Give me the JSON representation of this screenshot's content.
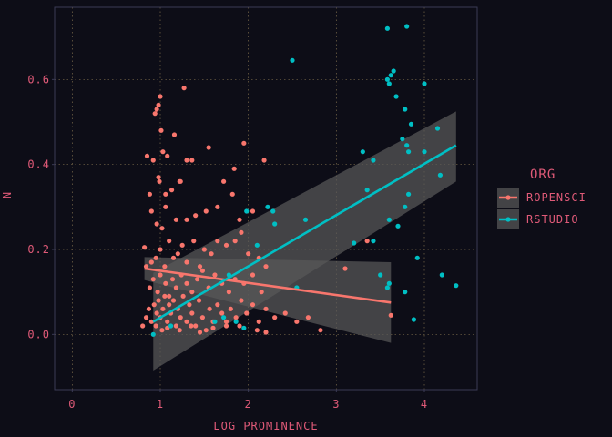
{
  "chart_data": {
    "type": "scatter",
    "xlabel": "LOG PROMINENCE",
    "ylabel": "N",
    "xlim": [
      -0.2,
      4.6
    ],
    "ylim": [
      -0.13,
      0.77
    ],
    "x_ticks": [
      0,
      1,
      2,
      3,
      4
    ],
    "y_ticks": [
      0.0,
      0.2,
      0.4,
      0.6
    ],
    "x_tick_labels": [
      "0",
      "1",
      "2",
      "3",
      "4"
    ],
    "y_tick_labels": [
      "0.0",
      "0.2",
      "0.4",
      "0.6"
    ],
    "grid": true,
    "legend": {
      "title": "ORG",
      "position": "right"
    },
    "colors": {
      "background": "#0d0d17",
      "panel_border": "#3a3a55",
      "grid": "#7a6a4a",
      "text": "#e05a78",
      "ribbon": "#595959"
    },
    "series": [
      {
        "name": "ROPENSCI",
        "color": "#f8766d",
        "points": [
          [
            0.82,
            0.205
          ],
          [
            0.85,
            0.42
          ],
          [
            0.88,
            0.33
          ],
          [
            0.92,
            0.41
          ],
          [
            0.94,
            0.52
          ],
          [
            0.96,
            0.53
          ],
          [
            0.98,
            0.54
          ],
          [
            1.0,
            0.56
          ],
          [
            1.01,
            0.48
          ],
          [
            0.98,
            0.37
          ],
          [
            0.99,
            0.36
          ],
          [
            1.03,
            0.43
          ],
          [
            1.06,
            0.33
          ],
          [
            1.08,
            0.42
          ],
          [
            1.16,
            0.47
          ],
          [
            1.23,
            0.36
          ],
          [
            1.27,
            0.58
          ],
          [
            1.3,
            0.41
          ],
          [
            1.36,
            0.41
          ],
          [
            1.55,
            0.44
          ],
          [
            1.84,
            0.39
          ],
          [
            1.95,
            0.45
          ],
          [
            2.18,
            0.41
          ],
          [
            0.9,
            0.29
          ],
          [
            0.96,
            0.26
          ],
          [
            1.02,
            0.25
          ],
          [
            1.06,
            0.3
          ],
          [
            1.13,
            0.34
          ],
          [
            1.18,
            0.27
          ],
          [
            1.22,
            0.36
          ],
          [
            1.3,
            0.27
          ],
          [
            1.4,
            0.28
          ],
          [
            1.52,
            0.29
          ],
          [
            1.65,
            0.3
          ],
          [
            1.72,
            0.36
          ],
          [
            1.82,
            0.33
          ],
          [
            1.9,
            0.27
          ],
          [
            2.05,
            0.29
          ],
          [
            0.84,
            0.16
          ],
          [
            0.9,
            0.17
          ],
          [
            0.95,
            0.18
          ],
          [
            1.0,
            0.2
          ],
          [
            1.05,
            0.16
          ],
          [
            1.1,
            0.22
          ],
          [
            1.15,
            0.18
          ],
          [
            1.2,
            0.19
          ],
          [
            1.25,
            0.21
          ],
          [
            1.3,
            0.17
          ],
          [
            1.38,
            0.22
          ],
          [
            1.45,
            0.16
          ],
          [
            1.5,
            0.2
          ],
          [
            1.58,
            0.19
          ],
          [
            1.65,
            0.22
          ],
          [
            1.75,
            0.21
          ],
          [
            1.85,
            0.22
          ],
          [
            1.92,
            0.24
          ],
          [
            2.0,
            0.19
          ],
          [
            2.12,
            0.18
          ],
          [
            2.2,
            0.16
          ],
          [
            0.88,
            0.11
          ],
          [
            0.92,
            0.13
          ],
          [
            0.97,
            0.1
          ],
          [
            1.0,
            0.14
          ],
          [
            1.06,
            0.12
          ],
          [
            1.1,
            0.09
          ],
          [
            1.14,
            0.13
          ],
          [
            1.18,
            0.11
          ],
          [
            1.24,
            0.14
          ],
          [
            1.3,
            0.12
          ],
          [
            1.36,
            0.1
          ],
          [
            1.42,
            0.13
          ],
          [
            1.48,
            0.15
          ],
          [
            1.55,
            0.11
          ],
          [
            1.62,
            0.14
          ],
          [
            1.7,
            0.12
          ],
          [
            1.78,
            0.1
          ],
          [
            1.85,
            0.13
          ],
          [
            1.95,
            0.12
          ],
          [
            2.05,
            0.14
          ],
          [
            2.15,
            0.1
          ],
          [
            0.8,
            0.02
          ],
          [
            0.84,
            0.04
          ],
          [
            0.87,
            0.06
          ],
          [
            0.9,
            0.03
          ],
          [
            0.93,
            0.07
          ],
          [
            0.96,
            0.05
          ],
          [
            0.98,
            0.08
          ],
          [
            1.0,
            0.04
          ],
          [
            1.03,
            0.06
          ],
          [
            1.05,
            0.09
          ],
          [
            1.08,
            0.03
          ],
          [
            1.1,
            0.07
          ],
          [
            1.12,
            0.05
          ],
          [
            1.15,
            0.08
          ],
          [
            1.18,
            0.02
          ],
          [
            1.2,
            0.06
          ],
          [
            1.23,
            0.04
          ],
          [
            1.26,
            0.09
          ],
          [
            1.3,
            0.03
          ],
          [
            1.33,
            0.07
          ],
          [
            1.36,
            0.05
          ],
          [
            1.4,
            0.02
          ],
          [
            1.44,
            0.08
          ],
          [
            1.48,
            0.04
          ],
          [
            1.52,
            0.01
          ],
          [
            1.56,
            0.06
          ],
          [
            1.6,
            0.03
          ],
          [
            1.65,
            0.07
          ],
          [
            1.7,
            0.05
          ],
          [
            1.75,
            0.02
          ],
          [
            1.8,
            0.06
          ],
          [
            1.86,
            0.04
          ],
          [
            1.92,
            0.08
          ],
          [
            1.98,
            0.05
          ],
          [
            2.05,
            0.07
          ],
          [
            2.12,
            0.03
          ],
          [
            2.2,
            0.06
          ],
          [
            2.3,
            0.04
          ],
          [
            2.42,
            0.05
          ],
          [
            2.55,
            0.03
          ],
          [
            2.68,
            0.04
          ],
          [
            2.82,
            0.01
          ],
          [
            3.1,
            0.155
          ],
          [
            3.35,
            0.22
          ],
          [
            3.62,
            0.045
          ],
          [
            0.95,
            0.02
          ],
          [
            1.02,
            0.01
          ],
          [
            1.08,
            0.015
          ],
          [
            1.22,
            0.01
          ],
          [
            1.35,
            0.02
          ],
          [
            1.45,
            0.005
          ],
          [
            1.6,
            0.015
          ],
          [
            1.75,
            0.03
          ],
          [
            1.9,
            0.02
          ],
          [
            2.1,
            0.01
          ],
          [
            2.2,
            0.005
          ]
        ],
        "fit": {
          "x": [
            0.82,
            3.62
          ],
          "y": [
            0.155,
            0.075
          ],
          "lo": [
            0.128,
            -0.02
          ],
          "hi": [
            0.182,
            0.17
          ]
        }
      },
      {
        "name": "RSTUDIO",
        "color": "#00bfc4",
        "points": [
          [
            0.92,
            0.0
          ],
          [
            1.12,
            0.02
          ],
          [
            1.62,
            0.03
          ],
          [
            1.72,
            0.04
          ],
          [
            1.78,
            0.14
          ],
          [
            1.86,
            0.03
          ],
          [
            1.95,
            0.015
          ],
          [
            1.98,
            0.29
          ],
          [
            2.1,
            0.21
          ],
          [
            2.22,
            0.3
          ],
          [
            2.28,
            0.29
          ],
          [
            2.5,
            0.645
          ],
          [
            2.3,
            0.26
          ],
          [
            2.55,
            0.11
          ],
          [
            2.65,
            0.27
          ],
          [
            3.2,
            0.215
          ],
          [
            3.3,
            0.43
          ],
          [
            3.35,
            0.34
          ],
          [
            3.42,
            0.41
          ],
          [
            3.42,
            0.22
          ],
          [
            3.5,
            0.14
          ],
          [
            3.58,
            0.11
          ],
          [
            3.6,
            0.12
          ],
          [
            3.58,
            0.72
          ],
          [
            3.58,
            0.6
          ],
          [
            3.6,
            0.59
          ],
          [
            3.62,
            0.61
          ],
          [
            3.65,
            0.62
          ],
          [
            3.68,
            0.56
          ],
          [
            3.7,
            0.255
          ],
          [
            3.75,
            0.46
          ],
          [
            3.78,
            0.53
          ],
          [
            3.8,
            0.725
          ],
          [
            3.8,
            0.445
          ],
          [
            3.82,
            0.43
          ],
          [
            3.85,
            0.495
          ],
          [
            3.78,
            0.3
          ],
          [
            3.82,
            0.33
          ],
          [
            3.78,
            0.1
          ],
          [
            3.6,
            0.27
          ],
          [
            3.88,
            0.035
          ],
          [
            3.92,
            0.18
          ],
          [
            4.0,
            0.59
          ],
          [
            4.0,
            0.43
          ],
          [
            4.15,
            0.485
          ],
          [
            4.18,
            0.375
          ],
          [
            4.2,
            0.14
          ],
          [
            4.36,
            0.115
          ]
        ],
        "fit": {
          "x": [
            0.92,
            4.36
          ],
          "y": [
            0.03,
            0.445
          ],
          "lo": [
            -0.085,
            0.36
          ],
          "hi": [
            0.145,
            0.525
          ]
        }
      }
    ]
  }
}
